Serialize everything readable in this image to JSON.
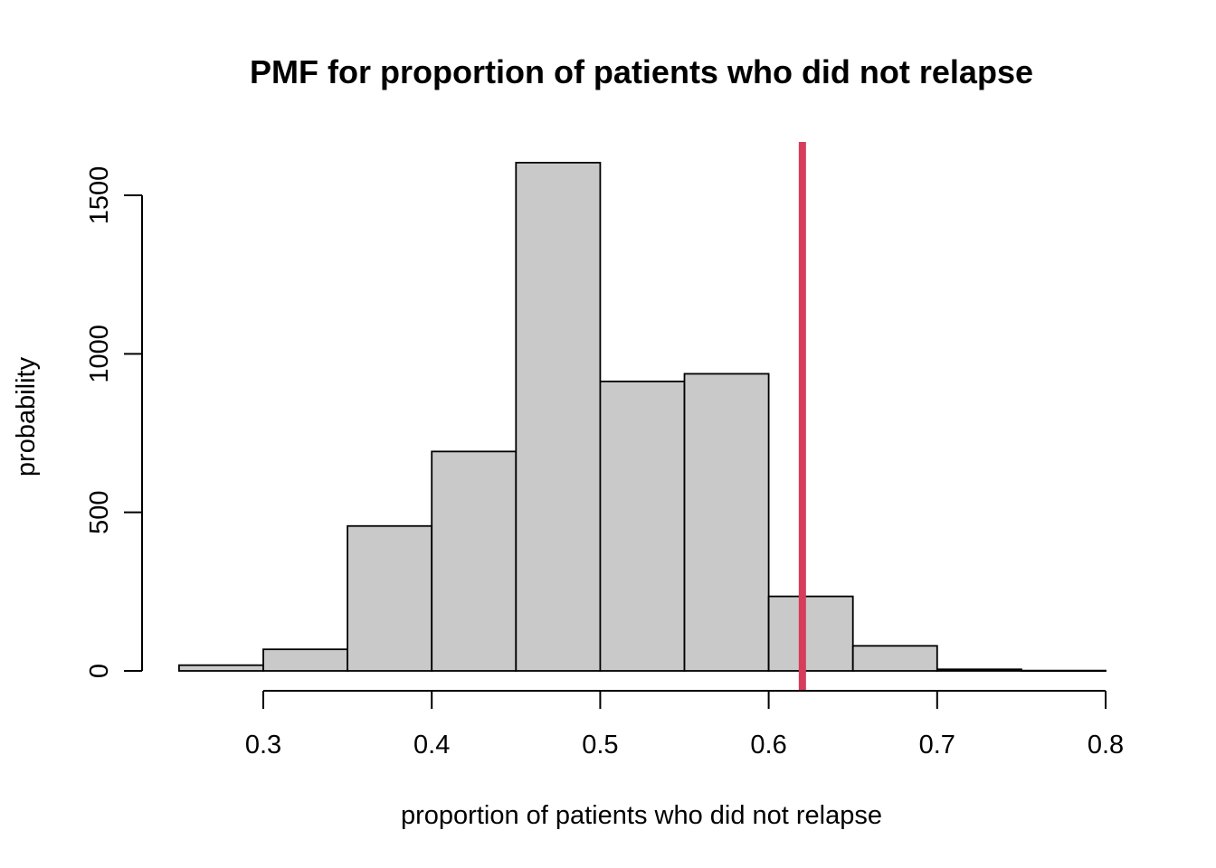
{
  "chart_data": {
    "type": "bar",
    "title": "PMF for proportion of patients who did not relapse",
    "xlabel": "proportion of patients who did not relapse",
    "ylabel": "probability",
    "bins": [
      {
        "x0": 0.25,
        "x1": 0.3,
        "value": 18
      },
      {
        "x0": 0.3,
        "x1": 0.35,
        "value": 68
      },
      {
        "x0": 0.35,
        "x1": 0.4,
        "value": 457
      },
      {
        "x0": 0.4,
        "x1": 0.45,
        "value": 692
      },
      {
        "x0": 0.45,
        "x1": 0.5,
        "value": 1603
      },
      {
        "x0": 0.5,
        "x1": 0.55,
        "value": 913
      },
      {
        "x0": 0.55,
        "x1": 0.6,
        "value": 937
      },
      {
        "x0": 0.6,
        "x1": 0.65,
        "value": 235
      },
      {
        "x0": 0.65,
        "x1": 0.7,
        "value": 79
      },
      {
        "x0": 0.7,
        "x1": 0.75,
        "value": 5
      },
      {
        "x0": 0.75,
        "x1": 0.8,
        "value": 1
      }
    ],
    "xlim": [
      0.25,
      0.8
    ],
    "ylim": [
      0,
      1650
    ],
    "x_ticks": [
      "0.3",
      "0.4",
      "0.5",
      "0.6",
      "0.7",
      "0.8"
    ],
    "y_ticks": [
      "0",
      "500",
      "1000",
      "1500"
    ],
    "reference_line": {
      "x": 0.62,
      "color": "#d63d5b"
    },
    "bar_color": "#c9c9c9",
    "grid": false,
    "legend": "none"
  }
}
